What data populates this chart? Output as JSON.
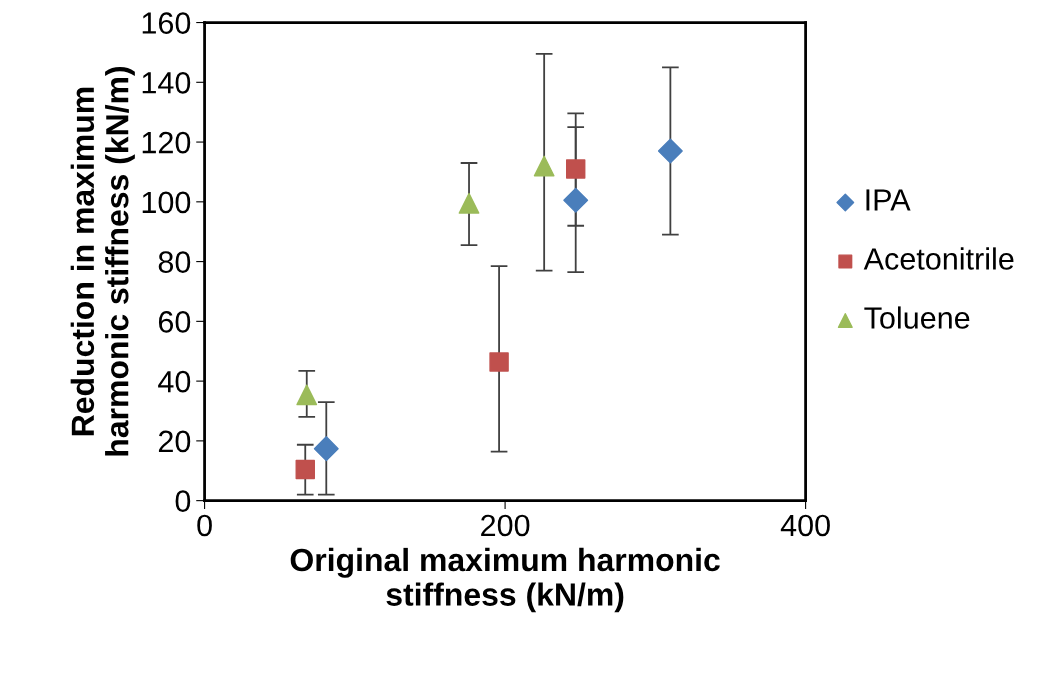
{
  "chart_data": {
    "type": "scatter",
    "xlabel": "Original maximum harmonic\nstiffness (kN/m)",
    "ylabel": "Reduction in maximum\nharmonic stiffness (kN/m)",
    "xlim": [
      0,
      400
    ],
    "xticks": [
      0,
      200,
      400
    ],
    "ylim": [
      0,
      160
    ],
    "yticks": [
      0,
      20,
      40,
      60,
      80,
      100,
      120,
      140,
      160
    ],
    "grid": false,
    "legend": "right",
    "series": [
      {
        "name": "IPA",
        "color": "#4a7ebb",
        "marker": "diamond",
        "x": [
          81,
          247,
          310
        ],
        "values": [
          17.4,
          100.5,
          117
        ],
        "errors": [
          [
            2,
            33
          ],
          [
            76.5,
            125
          ],
          [
            89,
            145
          ]
        ]
      },
      {
        "name": "Acetonitrile",
        "color": "#c0504d",
        "marker": "square",
        "x": [
          67,
          196,
          247
        ],
        "values": [
          10.4,
          46.4,
          111
        ],
        "errors": [
          [
            2,
            18.7
          ],
          [
            16.4,
            78.5
          ],
          [
            92,
            129.6
          ]
        ]
      },
      {
        "name": "Toluene",
        "color": "#9bbb59",
        "marker": "triangle",
        "x": [
          68,
          176,
          226
        ],
        "values": [
          35.4,
          99.5,
          112
        ],
        "errors": [
          [
            28,
            43.4
          ],
          [
            85.5,
            113
          ],
          [
            77,
            149.5
          ]
        ]
      }
    ]
  }
}
